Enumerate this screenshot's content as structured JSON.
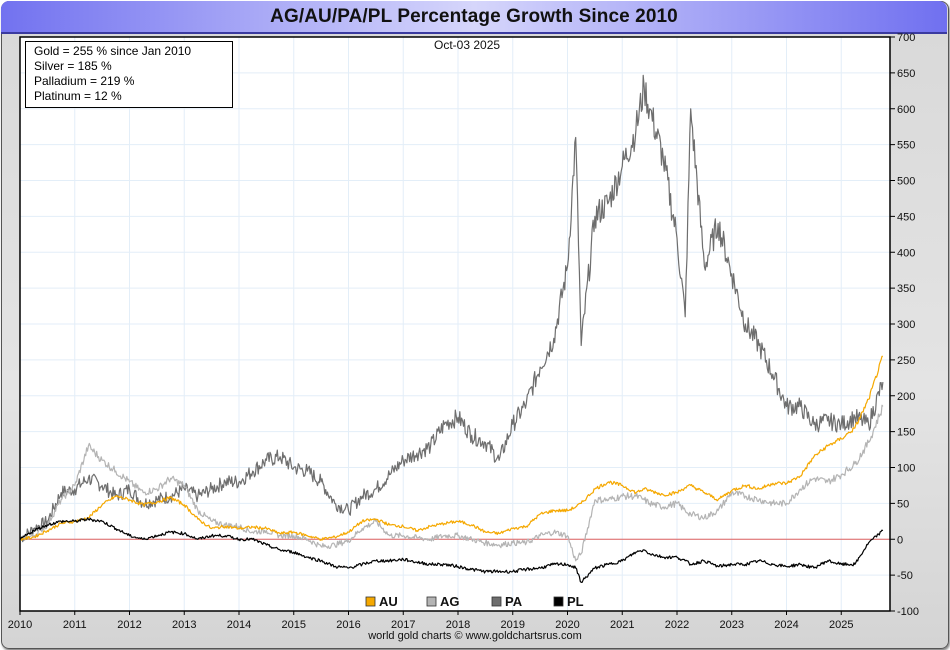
{
  "window": {
    "title": "AG/AU/PA/PL Percentage Growth Since 2010"
  },
  "info_box": {
    "lines": [
      "Gold = 255 % since Jan 2010",
      "Silver = 185 %",
      "Palladium = 219 %",
      "Platinum = 12 %"
    ]
  },
  "date_label": "Oct-03  2025",
  "footer": "world gold charts © www.goldchartsrus.com",
  "colors": {
    "gold": "#f5a800",
    "silver": "#b4b4b4",
    "palladium": "#6e6e6e",
    "platinum": "#000000",
    "zero_line": "#e06060",
    "grid": "#e3eef8"
  },
  "chart_data": {
    "type": "line",
    "title": "AG/AU/PA/PL Percentage Growth Since 2010",
    "xlabel": "",
    "ylabel": "",
    "xlim": [
      2010.0,
      2025.8
    ],
    "ylim": [
      -100,
      700
    ],
    "y_ticks": [
      -100,
      -50,
      0,
      50,
      100,
      150,
      200,
      250,
      300,
      350,
      400,
      450,
      500,
      550,
      600,
      650,
      700
    ],
    "x_ticks": [
      "2010",
      "2011",
      "2012",
      "2013",
      "2014",
      "2015",
      "2016",
      "2017",
      "2018",
      "2019",
      "2020",
      "2021",
      "2022",
      "2023",
      "2024",
      "2025"
    ],
    "y_axis_position": "right",
    "grid": true,
    "reference_line": 0,
    "legend": {
      "placement": "bottom-center",
      "entries": [
        "AU",
        "AG",
        "PA",
        "PL"
      ]
    },
    "x": [
      2010.0,
      2010.25,
      2010.5,
      2010.75,
      2011.0,
      2011.25,
      2011.5,
      2011.75,
      2012.0,
      2012.25,
      2012.5,
      2012.75,
      2013.0,
      2013.25,
      2013.5,
      2013.75,
      2014.0,
      2014.25,
      2014.5,
      2014.75,
      2015.0,
      2015.25,
      2015.5,
      2015.75,
      2016.0,
      2016.25,
      2016.5,
      2016.75,
      2017.0,
      2017.25,
      2017.5,
      2017.75,
      2018.0,
      2018.25,
      2018.5,
      2018.75,
      2019.0,
      2019.25,
      2019.5,
      2019.75,
      2020.0,
      2020.15,
      2020.25,
      2020.5,
      2020.75,
      2021.0,
      2021.25,
      2021.4,
      2021.5,
      2021.75,
      2022.0,
      2022.15,
      2022.25,
      2022.5,
      2022.75,
      2023.0,
      2023.25,
      2023.5,
      2023.75,
      2024.0,
      2024.25,
      2024.5,
      2024.75,
      2025.0,
      2025.25,
      2025.5,
      2025.76
    ],
    "series": [
      {
        "name": "AU",
        "values": [
          0,
          3,
          12,
          22,
          25,
          30,
          48,
          60,
          55,
          48,
          52,
          58,
          48,
          28,
          15,
          18,
          15,
          17,
          15,
          8,
          10,
          5,
          0,
          3,
          10,
          25,
          28,
          20,
          18,
          12,
          18,
          22,
          25,
          20,
          10,
          8,
          15,
          18,
          35,
          40,
          40,
          45,
          50,
          70,
          80,
          75,
          65,
          70,
          68,
          62,
          65,
          72,
          75,
          65,
          55,
          68,
          75,
          70,
          78,
          78,
          88,
          115,
          130,
          140,
          155,
          195,
          255
        ]
      },
      {
        "name": "AG",
        "values": [
          0,
          5,
          20,
          55,
          75,
          130,
          110,
          95,
          80,
          65,
          70,
          85,
          75,
          40,
          25,
          20,
          18,
          10,
          12,
          5,
          5,
          0,
          -10,
          -8,
          -2,
          15,
          25,
          5,
          5,
          2,
          0,
          5,
          5,
          0,
          -5,
          -8,
          -5,
          -5,
          5,
          10,
          5,
          -30,
          -20,
          55,
          55,
          60,
          60,
          55,
          50,
          45,
          50,
          40,
          35,
          30,
          40,
          65,
          60,
          55,
          50,
          50,
          70,
          85,
          80,
          90,
          105,
          135,
          185
        ]
      },
      {
        "name": "PA",
        "values": [
          0,
          15,
          25,
          65,
          70,
          85,
          75,
          60,
          70,
          50,
          55,
          60,
          70,
          60,
          70,
          80,
          80,
          95,
          110,
          115,
          100,
          95,
          80,
          50,
          40,
          60,
          70,
          90,
          110,
          120,
          130,
          160,
          170,
          145,
          135,
          110,
          160,
          190,
          240,
          280,
          380,
          560,
          270,
          450,
          470,
          520,
          570,
          630,
          600,
          530,
          420,
          310,
          600,
          380,
          440,
          370,
          300,
          270,
          230,
          185,
          185,
          160,
          165,
          160,
          170,
          160,
          219
        ]
      },
      {
        "name": "PL",
        "values": [
          0,
          12,
          20,
          25,
          25,
          28,
          25,
          15,
          5,
          0,
          5,
          10,
          8,
          0,
          5,
          5,
          0,
          0,
          -8,
          -15,
          -18,
          -25,
          -30,
          -38,
          -40,
          -35,
          -30,
          -30,
          -28,
          -32,
          -35,
          -35,
          -38,
          -42,
          -45,
          -45,
          -45,
          -42,
          -40,
          -35,
          -35,
          -40,
          -60,
          -40,
          -35,
          -30,
          -18,
          -15,
          -20,
          -25,
          -25,
          -30,
          -35,
          -30,
          -38,
          -35,
          -35,
          -30,
          -35,
          -38,
          -35,
          -40,
          -30,
          -35,
          -35,
          -5,
          12
        ]
      }
    ]
  }
}
